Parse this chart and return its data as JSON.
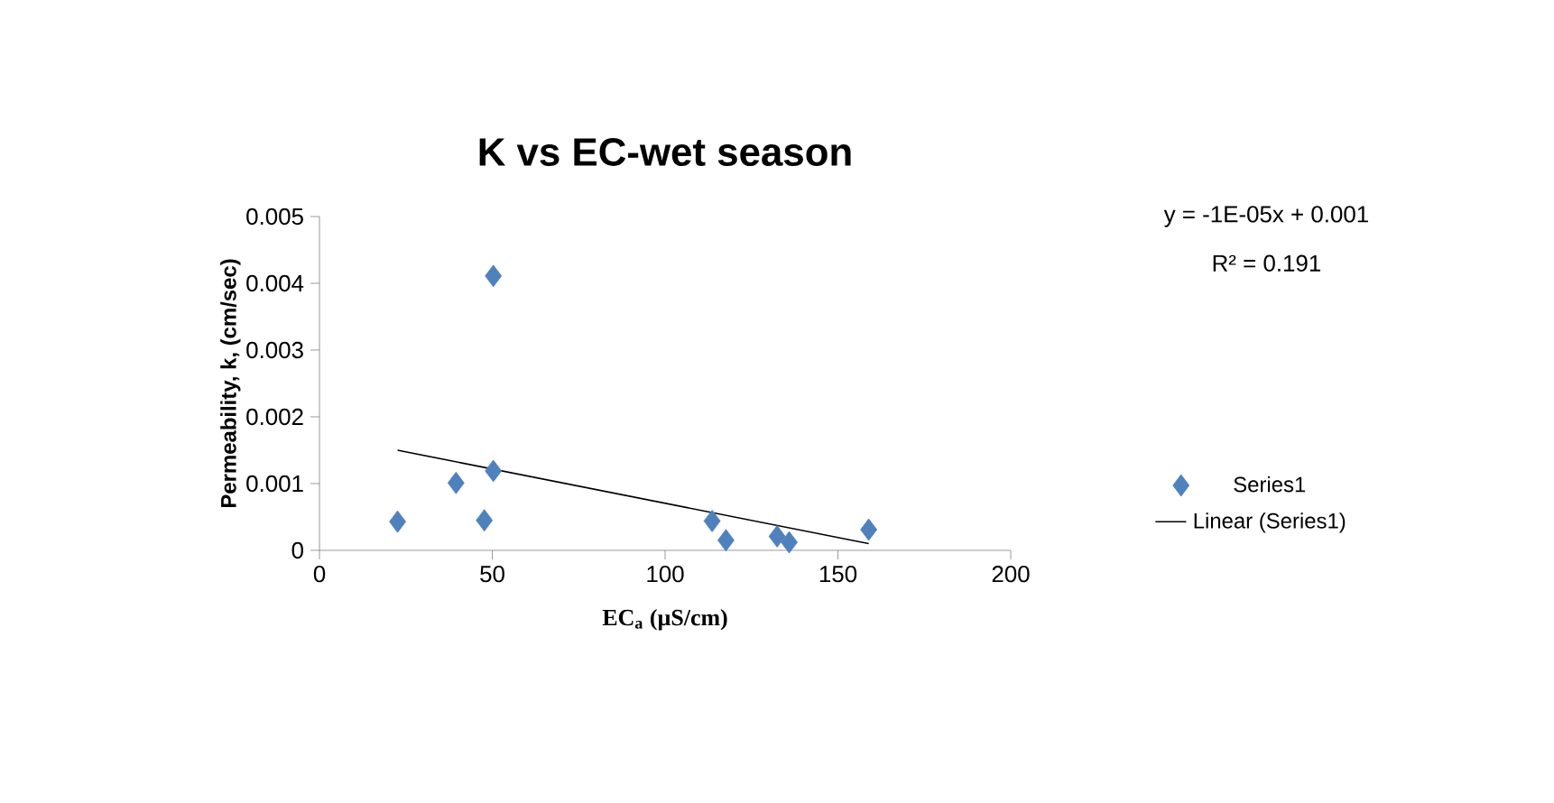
{
  "chart_data": {
    "type": "scatter",
    "title": "K vs EC-wet season",
    "xlabel": "EC$_{a}$ (µS/cm)",
    "ylabel": "Permeability, k, (cm/sec)",
    "xlim": [
      0,
      200
    ],
    "xticks": [
      0,
      50,
      100,
      150,
      200
    ],
    "ylim": [
      0,
      0.005
    ],
    "yticks": [
      0,
      0.001,
      0.002,
      0.003,
      0.004,
      0.005
    ],
    "legend": "right",
    "grid": false,
    "annotations": [
      "y = -1E-05x + 0.001",
      "R² = 0.191"
    ],
    "series": [
      {
        "name": "Series1",
        "type": "scatter",
        "marker": "diamond",
        "color": "#4f81bd",
        "x": [
          22.6,
          39.5,
          47.7,
          50.3,
          50.3,
          113.6,
          117.6,
          132.4,
          135.9,
          158.9
        ],
        "values": [
          0.00043,
          0.00101,
          0.00045,
          0.00411,
          0.00119,
          0.00044,
          0.00015,
          0.00021,
          0.00012,
          0.00031
        ]
      },
      {
        "name": "Linear (Series1)",
        "type": "line",
        "marker": "none",
        "line_style": "solid",
        "color": "#000000",
        "x": [
          22.6,
          158.9
        ],
        "values": [
          0.0015,
          0.0001
        ]
      }
    ]
  }
}
